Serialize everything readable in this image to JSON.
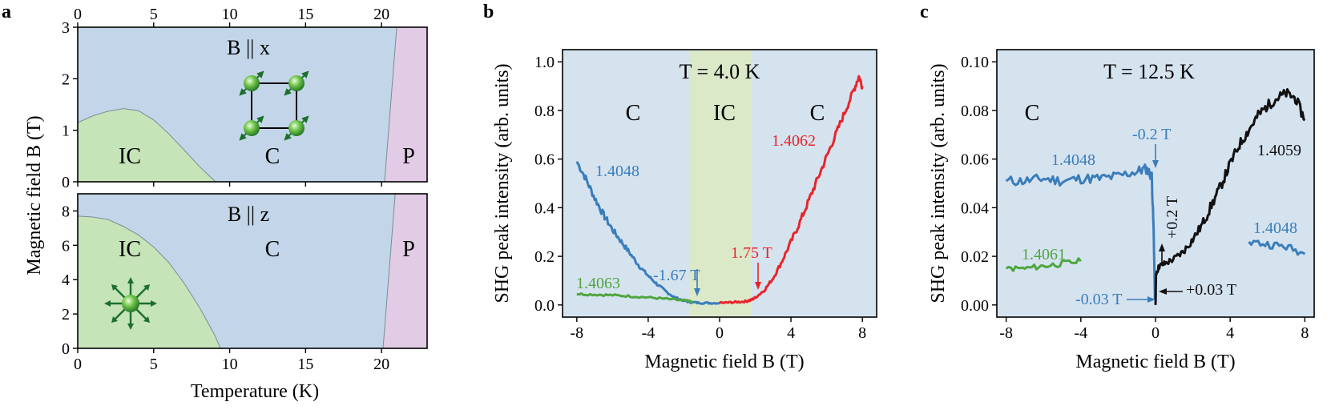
{
  "colors": {
    "phase_C": "#c3d6e9",
    "phase_IC": "#c5e4b8",
    "phase_P": "#e2cbe4",
    "band_IC": "#dce9c9",
    "panel_bg": "#d5e3ef",
    "blue": "#3a7dbb",
    "green": "#4fa63f",
    "red": "#e8242b",
    "black": "#111111",
    "arrow_green": "#1c6f2c"
  },
  "chart_data": [
    {
      "panel": "a",
      "type": "area",
      "subplot": "top",
      "field_label": "B || x",
      "x_ticks": [
        "0",
        "5",
        "10",
        "15",
        "20"
      ],
      "y_ticks": [
        "0",
        "1",
        "2",
        "3"
      ],
      "xlim": [
        0,
        23
      ],
      "ylim": [
        0,
        3
      ],
      "regions": [
        {
          "label": "IC",
          "boundary": [
            [
              0,
              1.15
            ],
            [
              1,
              1.28
            ],
            [
              2,
              1.37
            ],
            [
              3,
              1.42
            ],
            [
              4,
              1.38
            ],
            [
              5,
              1.2
            ],
            [
              6,
              0.93
            ],
            [
              7,
              0.62
            ],
            [
              8,
              0.3
            ],
            [
              9,
              0.02
            ]
          ]
        },
        {
          "label": "C"
        },
        {
          "label": "P",
          "boundary": [
            [
              20.2,
              0
            ],
            [
              21,
              3
            ]
          ]
        }
      ]
    },
    {
      "panel": "a",
      "type": "area",
      "subplot": "bottom",
      "field_label": "B || z",
      "xlabel": "Temperature (K)",
      "ylabel": "Magnetic field B (T)",
      "x_ticks": [
        "0",
        "5",
        "10",
        "15",
        "20"
      ],
      "y_ticks": [
        "0",
        "2",
        "4",
        "6",
        "8"
      ],
      "xlim": [
        0,
        23
      ],
      "ylim": [
        0,
        9
      ],
      "regions": [
        {
          "label": "IC",
          "boundary": [
            [
              0,
              7.7
            ],
            [
              1,
              7.65
            ],
            [
              2,
              7.5
            ],
            [
              3,
              7.1
            ],
            [
              4,
              6.6
            ],
            [
              5,
              5.9
            ],
            [
              6,
              5.0
            ],
            [
              7,
              3.8
            ],
            [
              8,
              2.4
            ],
            [
              9,
              0.8
            ],
            [
              9.4,
              0
            ]
          ]
        },
        {
          "label": "C"
        },
        {
          "label": "P",
          "boundary": [
            [
              20.1,
              0
            ],
            [
              20.9,
              7.9
            ]
          ]
        }
      ]
    },
    {
      "panel": "b",
      "type": "line",
      "title": "T = 4.0 K",
      "xlabel": "Magnetic field B (T)",
      "ylabel": "SHG peak intensity  (arb. units)",
      "x_ticks": [
        "-8",
        "-4",
        "0",
        "4",
        "8"
      ],
      "y_ticks": [
        "0.0",
        "0.2",
        "0.4",
        "0.6",
        "0.8",
        "1.0"
      ],
      "xlim": [
        -8.8,
        8.8
      ],
      "ylim": [
        -0.05,
        1.05
      ],
      "phase_labels": [
        "C",
        "IC",
        "C"
      ],
      "ic_band": [
        -1.67,
        1.75
      ],
      "series": [
        {
          "name": "1.4048",
          "color": "blue",
          "x": [
            -8,
            -7.5,
            -7,
            -6.5,
            -6,
            -5.5,
            -5,
            -4.5,
            -4,
            -3.5,
            -3,
            -2.5,
            -2,
            -1.67,
            -1.2,
            -0.6,
            0
          ],
          "y": [
            0.59,
            0.52,
            0.44,
            0.37,
            0.31,
            0.26,
            0.21,
            0.16,
            0.12,
            0.085,
            0.055,
            0.03,
            0.018,
            0.012,
            0.009,
            0.008,
            0.008
          ]
        },
        {
          "name": "1.4063",
          "color": "green",
          "x": [
            -8,
            -7,
            -6,
            -5,
            -4,
            -3,
            -2,
            -1.5
          ],
          "y": [
            0.045,
            0.043,
            0.04,
            0.036,
            0.031,
            0.025,
            0.018,
            0.014
          ]
        },
        {
          "name": "1.4062",
          "color": "red",
          "x": [
            0,
            0.5,
            1.0,
            1.5,
            1.75,
            2.0,
            2.5,
            3.0,
            3.5,
            4.0,
            4.5,
            5.0,
            5.5,
            6.0,
            6.5,
            7.0,
            7.5,
            7.8,
            8.0
          ],
          "y": [
            0.008,
            0.01,
            0.012,
            0.015,
            0.02,
            0.03,
            0.06,
            0.11,
            0.18,
            0.26,
            0.34,
            0.43,
            0.52,
            0.61,
            0.7,
            0.79,
            0.88,
            0.94,
            0.9
          ]
        }
      ],
      "annotations": [
        {
          "text": "-1.67 T",
          "x": -1.67,
          "color": "blue"
        },
        {
          "text": "1.75 T",
          "x": 1.75,
          "color": "red"
        }
      ]
    },
    {
      "panel": "c",
      "type": "line",
      "title": "T = 12.5 K",
      "xlabel": "Magnetic field B (T)",
      "ylabel": "SHG peak intensity  (arb. units)",
      "x_ticks": [
        "-8",
        "-4",
        "0",
        "4",
        "8"
      ],
      "y_ticks": [
        "0.00",
        "0.02",
        "0.04",
        "0.06",
        "0.08",
        "0.10"
      ],
      "xlim": [
        -8.5,
        8.5
      ],
      "ylim": [
        -0.005,
        0.105
      ],
      "phase_labels": [
        "C"
      ],
      "series": [
        {
          "name": "1.4048",
          "color": "blue",
          "x": [
            -8,
            -7,
            -6,
            -5,
            -4,
            -3,
            -2,
            -1,
            -0.5,
            -0.2,
            -0.1,
            -0.03
          ],
          "y": [
            0.051,
            0.051,
            0.052,
            0.051,
            0.052,
            0.052,
            0.053,
            0.055,
            0.056,
            0.053,
            0.03,
            0.002
          ]
        },
        {
          "name": "1.4061",
          "color": "green",
          "x": [
            -8,
            -7,
            -6,
            -5,
            -4
          ],
          "y": [
            0.015,
            0.015,
            0.016,
            0.017,
            0.018
          ]
        },
        {
          "name": "1.4059",
          "color": "black",
          "x": [
            0,
            0.03,
            0.2,
            0.5,
            1,
            1.5,
            2,
            2.5,
            3,
            3.5,
            4,
            4.5,
            5,
            5.5,
            6,
            6.5,
            7,
            7.5,
            8
          ],
          "y": [
            0.0,
            0.013,
            0.016,
            0.017,
            0.019,
            0.022,
            0.027,
            0.033,
            0.041,
            0.049,
            0.058,
            0.066,
            0.072,
            0.078,
            0.082,
            0.085,
            0.087,
            0.085,
            0.076
          ]
        },
        {
          "name": "1.4048",
          "color": "blue",
          "x": [
            5,
            6,
            7,
            8
          ],
          "y": [
            0.026,
            0.025,
            0.024,
            0.021
          ]
        }
      ],
      "annotations": [
        {
          "text": "-0.2 T",
          "color": "blue"
        },
        {
          "text": "+0.2 T",
          "color": "black"
        },
        {
          "text": "-0.03 T",
          "color": "blue"
        },
        {
          "text": "+0.03 T",
          "color": "black"
        }
      ]
    }
  ],
  "panel_letters": [
    "a",
    "b",
    "c"
  ]
}
